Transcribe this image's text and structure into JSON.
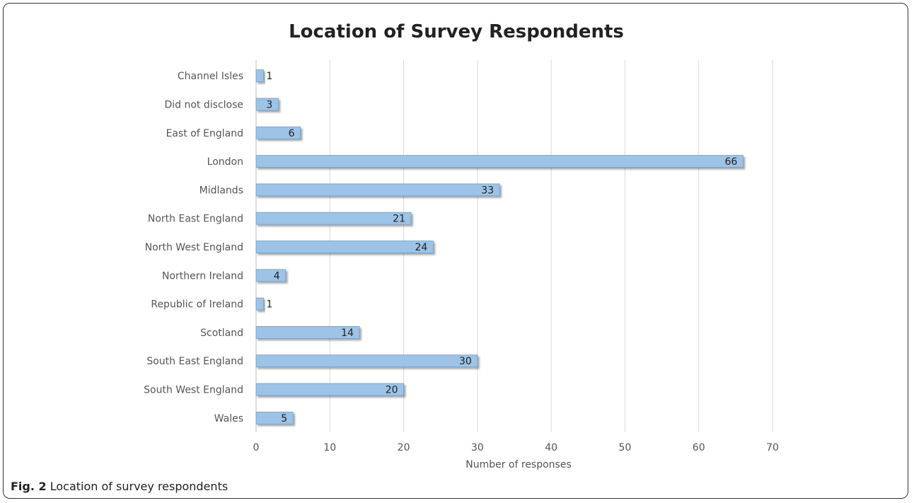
{
  "figure": {
    "caption_label": "Fig. 2",
    "caption_text": "Location of survey respondents"
  },
  "chart_data": {
    "type": "bar",
    "orientation": "horizontal",
    "title": "Location of Survey Respondents",
    "xlabel": "Number of responses",
    "ylabel": "",
    "xlim": [
      0,
      70
    ],
    "xticks": [
      0,
      10,
      20,
      30,
      40,
      50,
      60,
      70
    ],
    "grid": true,
    "legend": "none",
    "bar_color": "#9DC3E6",
    "bar_edge_color": "#6E9FCB",
    "grid_color": "#D9D9D9",
    "categories": [
      "Channel Isles",
      "Did not disclose",
      "East of England",
      "London",
      "Midlands",
      "North East England",
      "North West England",
      "Northern Ireland",
      "Republic of Ireland",
      "Scotland",
      "South East England",
      "South West England",
      "Wales"
    ],
    "values": [
      1,
      3,
      6,
      66,
      33,
      21,
      24,
      4,
      1,
      14,
      30,
      20,
      5
    ]
  }
}
